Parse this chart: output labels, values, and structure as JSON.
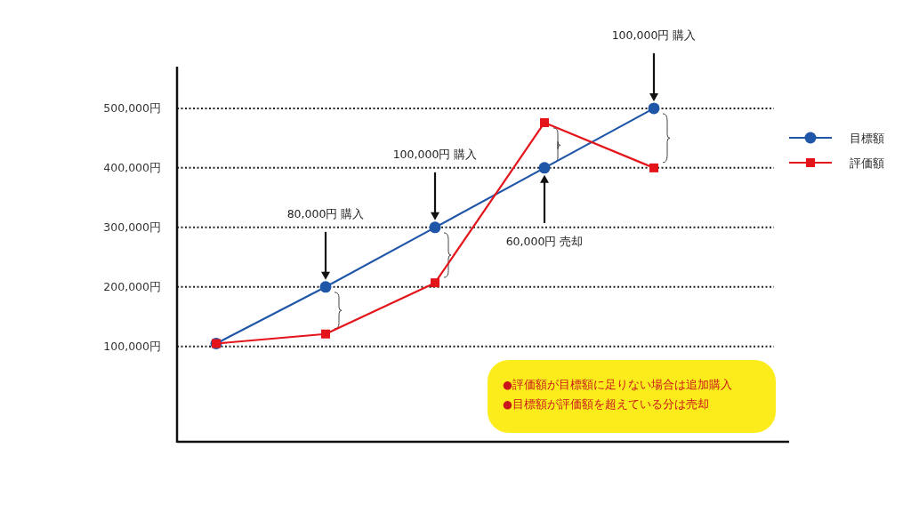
{
  "chart_data": {
    "type": "line",
    "categories": [
      null,
      null,
      null,
      null,
      null
    ],
    "series": [
      {
        "name": "目標額",
        "color": "#1f56a8",
        "marker": "circle",
        "values": [
          105000,
          200000,
          300000,
          400000,
          500000
        ]
      },
      {
        "name": "評価額",
        "color": "#e3151a",
        "marker": "square",
        "values": [
          105000,
          121000,
          207000,
          476000,
          400000
        ]
      }
    ],
    "ylim": [
      -60000,
      570000
    ],
    "yticks": [
      {
        "value": 100000,
        "label": "100,000円"
      },
      {
        "value": 200000,
        "label": "200,000円"
      },
      {
        "value": 300000,
        "label": "300,000円"
      },
      {
        "value": 400000,
        "label": "400,000円"
      },
      {
        "value": 500000,
        "label": "500,000円"
      }
    ],
    "grid": "y",
    "legend": "right",
    "annotations": [
      "80,000円 購入",
      "100,000円  購入",
      "60,000円 売却",
      "100,000円 購入",
      "●評価額が目標額に足りない場合は追加購入",
      "●目標額が評価額を超えている分は売却"
    ]
  }
}
